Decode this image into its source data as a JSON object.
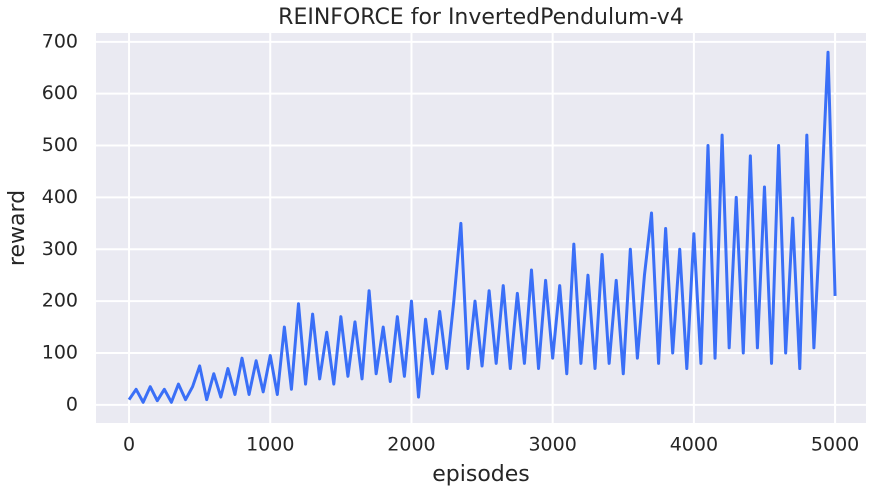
{
  "chart_data": {
    "type": "line",
    "title": "REINFORCE for InvertedPendulum-v4",
    "x_label": "episodes",
    "y_label": "reward",
    "color": "#3a6ff7",
    "grid": true,
    "xlim": [
      -234,
      5219
    ],
    "ylim": [
      -35,
      717
    ],
    "xticks": [
      0,
      1000,
      2000,
      3000,
      4000,
      5000
    ],
    "yticks": [
      0,
      100,
      200,
      300,
      400,
      500,
      600,
      700
    ],
    "x": [
      0,
      50,
      100,
      150,
      200,
      250,
      300,
      350,
      400,
      450,
      500,
      550,
      600,
      650,
      700,
      750,
      800,
      850,
      900,
      950,
      1000,
      1050,
      1100,
      1150,
      1200,
      1250,
      1300,
      1350,
      1400,
      1450,
      1500,
      1550,
      1600,
      1650,
      1700,
      1750,
      1800,
      1850,
      1900,
      1950,
      2000,
      2050,
      2100,
      2150,
      2200,
      2250,
      2300,
      2350,
      2400,
      2450,
      2500,
      2550,
      2600,
      2650,
      2700,
      2750,
      2800,
      2850,
      2900,
      2950,
      3000,
      3050,
      3100,
      3150,
      3200,
      3250,
      3300,
      3350,
      3400,
      3450,
      3500,
      3550,
      3600,
      3650,
      3700,
      3750,
      3800,
      3850,
      3900,
      3950,
      4000,
      4050,
      4100,
      4150,
      4200,
      4250,
      4300,
      4350,
      4400,
      4450,
      4500,
      4550,
      4600,
      4650,
      4700,
      4750,
      4800,
      4850,
      4900,
      4950,
      5000
    ],
    "values": [
      10,
      30,
      5,
      35,
      8,
      30,
      5,
      40,
      10,
      35,
      75,
      10,
      60,
      15,
      70,
      20,
      90,
      20,
      85,
      25,
      95,
      20,
      150,
      30,
      195,
      40,
      175,
      50,
      140,
      40,
      170,
      55,
      160,
      50,
      220,
      60,
      150,
      45,
      170,
      55,
      200,
      15,
      165,
      60,
      180,
      70,
      200,
      350,
      70,
      200,
      75,
      220,
      80,
      230,
      70,
      215,
      80,
      260,
      70,
      240,
      90,
      230,
      60,
      310,
      80,
      250,
      70,
      290,
      80,
      240,
      60,
      300,
      90,
      250,
      370,
      80,
      340,
      100,
      300,
      70,
      330,
      80,
      500,
      90,
      520,
      110,
      400,
      100,
      480,
      110,
      420,
      80,
      500,
      100,
      360,
      70,
      520,
      110,
      380,
      680,
      210
    ]
  }
}
